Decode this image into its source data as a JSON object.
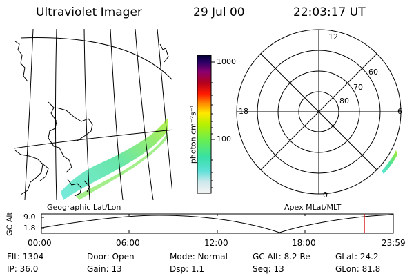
{
  "header": {
    "title": "Ultraviolet Imager",
    "date": "29 Jul 00",
    "time": "22:03:17 UT"
  },
  "colorbar": {
    "unit_label": "photon cm⁻²s⁻¹",
    "ticks": [
      "1000",
      "100"
    ]
  },
  "polar": {
    "mlt_labels": {
      "top": "12",
      "right": "6",
      "bottom": "0",
      "left": "18"
    },
    "lat_labels": [
      "60",
      "70",
      "80"
    ]
  },
  "map_labels": {
    "left": "Geographic Lat/Lon",
    "right": "Apex MLat/MLT"
  },
  "timeline": {
    "axis_title": "GC Alt",
    "y_ticks": [
      "9.0",
      "1.8"
    ],
    "x_ticks": [
      "00:00",
      "06:00",
      "12:00",
      "18:00",
      "23:59"
    ],
    "marker_color": "#d00000"
  },
  "status": {
    "flt": "Flt:  1304",
    "ip": "IP:  36.0",
    "door": "Door:  Open",
    "gain": "Gain:  13",
    "mode": "Mode:  Normal",
    "dsp": "Dsp:      1.1",
    "gcalt": "GC Alt:  8.2 Re",
    "seq": "Seq:  13",
    "glat": "GLat:    24.2",
    "glon": "GLon:    81.8"
  }
}
